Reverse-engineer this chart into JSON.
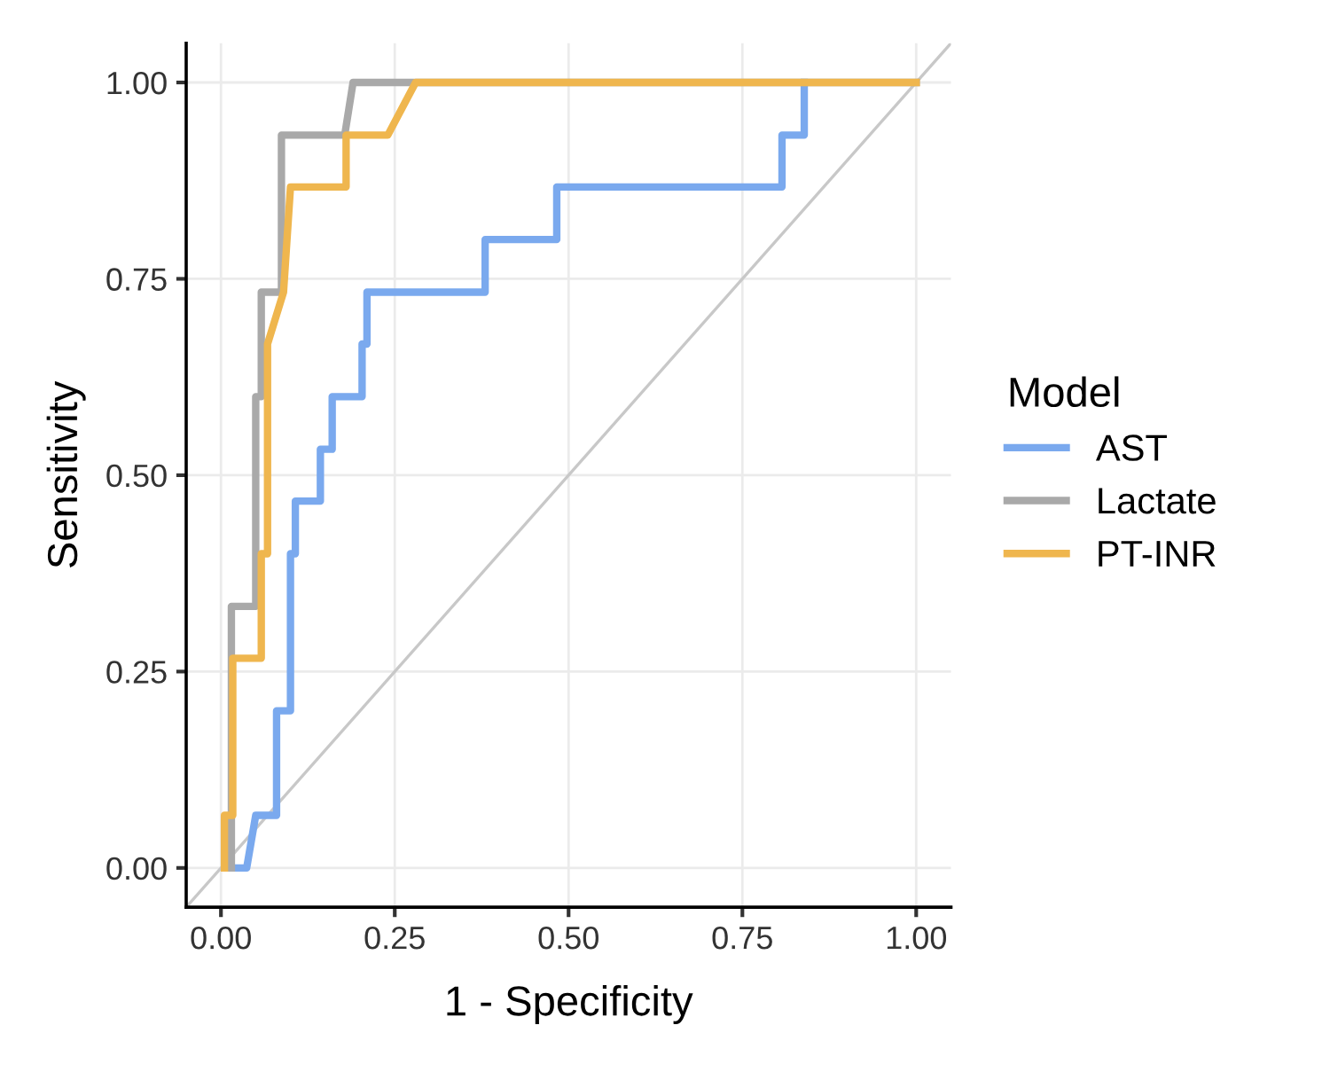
{
  "chart_data": {
    "type": "line",
    "xlabel": "1 - Specificity",
    "ylabel": "Sensitivity",
    "legend_title": "Model",
    "legend": "right",
    "grid": true,
    "line_style": "solid",
    "xlim": [
      -0.05,
      1.05
    ],
    "ylim": [
      -0.05,
      1.05
    ],
    "xticks": [
      {
        "value": 0,
        "label": "0.00"
      },
      {
        "value": 0.25,
        "label": "0.25"
      },
      {
        "value": 0.5,
        "label": "0.50"
      },
      {
        "value": 0.75,
        "label": "0.75"
      },
      {
        "value": 1,
        "label": "1.00"
      }
    ],
    "yticks": [
      {
        "value": 0,
        "label": "0.00"
      },
      {
        "value": 0.25,
        "label": "0.25"
      },
      {
        "value": 0.5,
        "label": "0.50"
      },
      {
        "value": 0.75,
        "label": "0.75"
      },
      {
        "value": 1,
        "label": "1.00"
      }
    ],
    "series": [
      {
        "type": "line",
        "color": "#c8c8c8",
        "x": [
          -0.05,
          1.05
        ],
        "values": [
          -0.05,
          1.05
        ]
      },
      {
        "name": "AST",
        "color": "#7aa9ee",
        "x": [
          0.02,
          0.037,
          0.05,
          0.08,
          0.08,
          0.1,
          0.1,
          0.107,
          0.107,
          0.143,
          0.143,
          0.16,
          0.16,
          0.203,
          0.203,
          0.21,
          0.21,
          0.38,
          0.38,
          0.483,
          0.483,
          0.807,
          0.807,
          0.839,
          0.839
        ],
        "values": [
          0,
          0,
          0.067,
          0.067,
          0.2,
          0.2,
          0.4,
          0.4,
          0.467,
          0.467,
          0.533,
          0.533,
          0.6,
          0.6,
          0.667,
          0.667,
          0.733,
          0.733,
          0.8,
          0.8,
          0.867,
          0.867,
          0.933,
          0.933,
          1.0
        ]
      },
      {
        "name": "Lactate",
        "color": "#a9a9a9",
        "x": [
          0.015,
          0.015,
          0.05,
          0.05,
          0.058,
          0.058,
          0.087,
          0.087,
          0.178,
          0.19,
          1.0
        ],
        "values": [
          0,
          0.333,
          0.333,
          0.6,
          0.6,
          0.733,
          0.733,
          0.933,
          0.933,
          1.0,
          1.0
        ]
      },
      {
        "name": "PT-INR",
        "color": "#efb64e",
        "x": [
          0.005,
          0.005,
          0.017,
          0.017,
          0.058,
          0.058,
          0.067,
          0.067,
          0.09,
          0.1,
          0.18,
          0.18,
          0.24,
          0.28,
          1.0
        ],
        "values": [
          0,
          0.067,
          0.067,
          0.267,
          0.267,
          0.4,
          0.4,
          0.667,
          0.733,
          0.867,
          0.867,
          0.933,
          0.933,
          1.0,
          1.0
        ]
      }
    ]
  }
}
